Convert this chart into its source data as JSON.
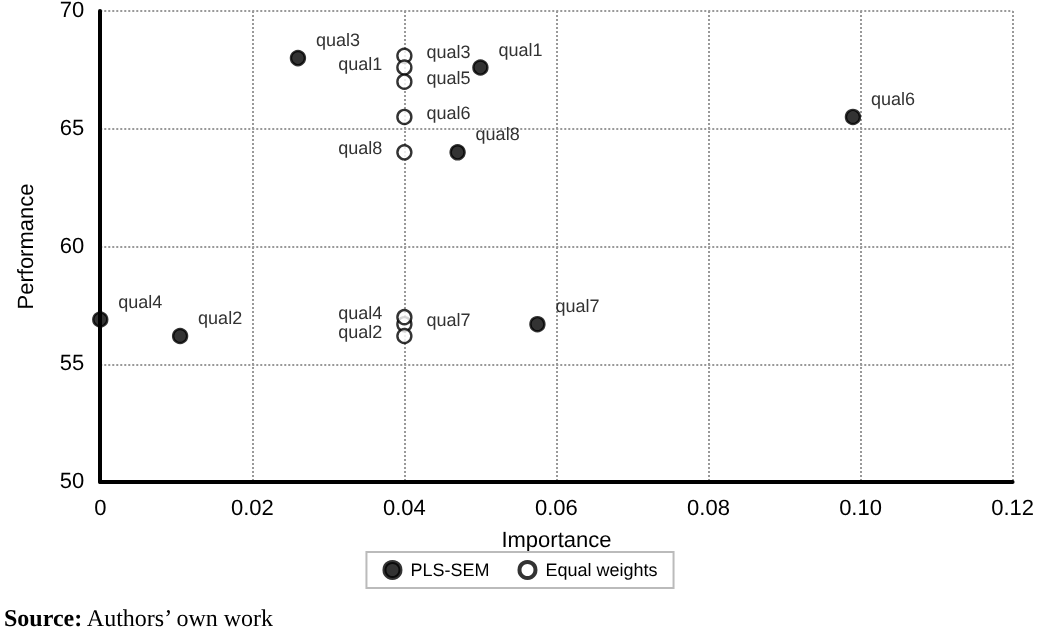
{
  "chart_data": {
    "type": "scatter",
    "xlabel": "Importance",
    "ylabel": "Performance",
    "xlim": [
      0,
      0.12
    ],
    "xticks": [
      {
        "value": 0,
        "label": "0"
      },
      0.02,
      0.04,
      0.06,
      0.08,
      {
        "value": 0.1,
        "label": "0.10"
      },
      0.12
    ],
    "ylim": [
      50,
      70
    ],
    "yticks": [
      50,
      55,
      60,
      65,
      70
    ],
    "grid": true,
    "legend": "bottom",
    "marker": "circle",
    "series": [
      {
        "name": "PLS-SEM",
        "color": "#000000",
        "x": [
          0.026,
          0.05,
          0.047,
          0.099,
          0.0575,
          0,
          0.0105
        ],
        "values": [
          68,
          67.6,
          64,
          65.5,
          56.7,
          56.9,
          56.2
        ]
      },
      {
        "name": "Equal weights",
        "color": "#ffffff",
        "x": [
          0.04,
          0.04,
          0.04,
          0.04,
          0.04,
          0.04,
          0.04,
          0.04
        ],
        "values": [
          68.1,
          67.6,
          67,
          65.5,
          64,
          56.7,
          57,
          56.2
        ]
      }
    ],
    "annotations": [
      {
        "text": "qual3",
        "x": 0.026,
        "y": 68
      },
      {
        "text": "qual1",
        "x": 0.05,
        "y": 67.6
      },
      {
        "text": "qual8",
        "x": 0.047,
        "y": 64
      },
      {
        "text": "qual6",
        "x": 0.099,
        "y": 65.5
      },
      {
        "text": "qual7",
        "x": 0.0575,
        "y": 56.7
      },
      {
        "text": "qual4",
        "x": 0,
        "y": 56.9
      },
      {
        "text": "qual2",
        "x": 0.0105,
        "y": 56.2
      },
      {
        "text": "qual3",
        "x": 0.04,
        "y": 68.1
      },
      {
        "text": "qual1",
        "x": 0.04,
        "y": 67.6
      },
      {
        "text": "qual5",
        "x": 0.04,
        "y": 67
      },
      {
        "text": "qual6",
        "x": 0.04,
        "y": 65.5
      },
      {
        "text": "qual8",
        "x": 0.04,
        "y": 64
      },
      {
        "text": "qual7",
        "x": 0.04,
        "y": 56.7
      },
      {
        "text": "qual4",
        "x": 0.04,
        "y": 57
      },
      {
        "text": "qual2",
        "x": 0.04,
        "y": 56.2
      },
      "Source: Authors’ own work"
    ]
  }
}
